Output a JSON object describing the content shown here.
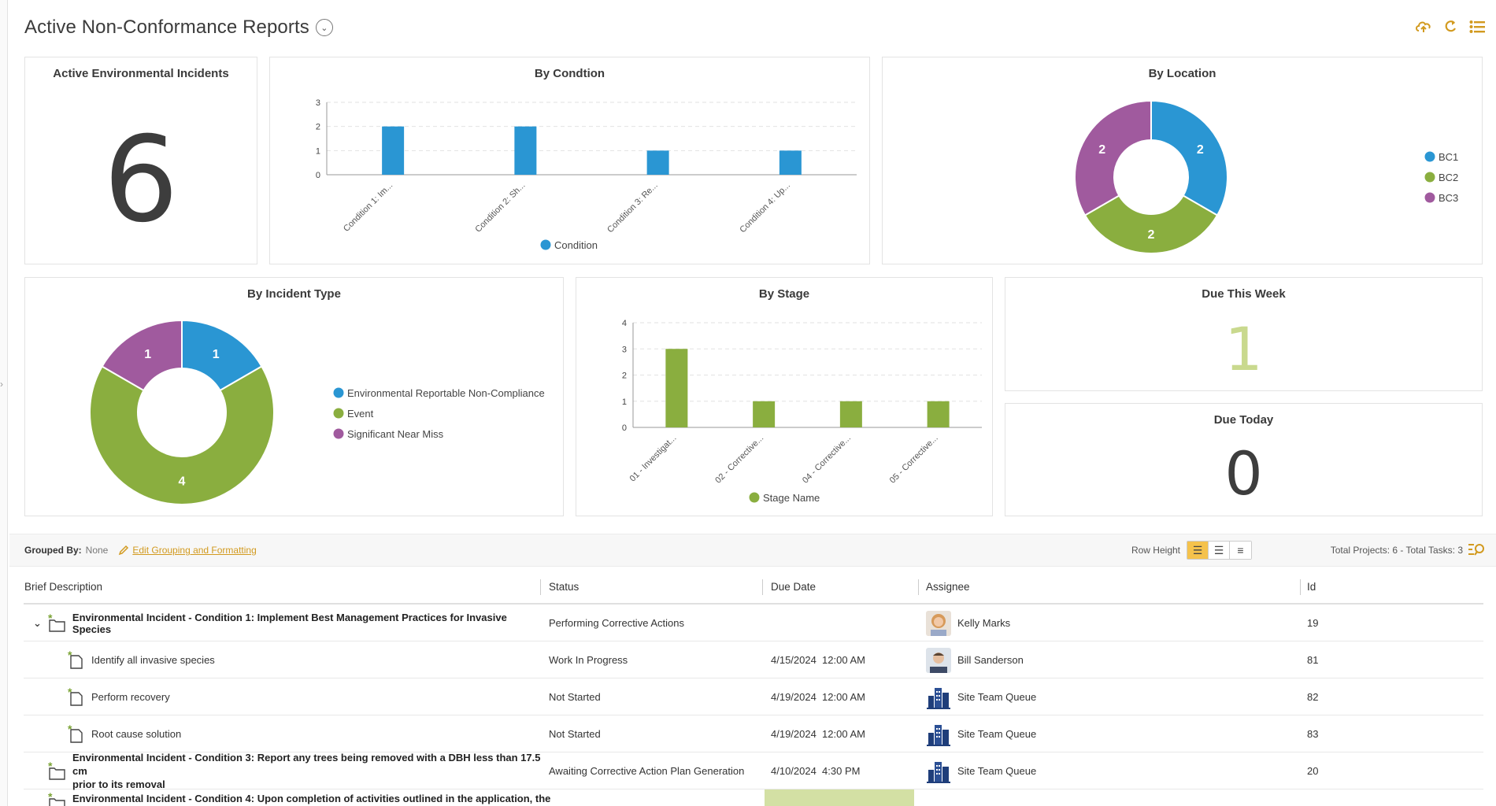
{
  "page": {
    "title": "Active Non-Conformance Reports"
  },
  "cards": {
    "active_incidents": {
      "title": "Active Environmental Incidents",
      "value": "6"
    },
    "by_condition": {
      "title": "By Condtion"
    },
    "by_location": {
      "title": "By Location"
    },
    "by_incident_type": {
      "title": "By Incident Type"
    },
    "by_stage": {
      "title": "By Stage"
    },
    "due_this_week": {
      "title": "Due This Week",
      "value": "1"
    },
    "due_today": {
      "title": "Due Today",
      "value": "0"
    }
  },
  "chart_data": [
    {
      "type": "bar",
      "title": "By Condtion",
      "categories": [
        "Condition 1: Im...",
        "Condition 2: Sh...",
        "Condition 3: Re...",
        "Condition 4: Up..."
      ],
      "series": [
        {
          "name": "Condition",
          "values": [
            2,
            2,
            1,
            1
          ],
          "color": "#2a96d3"
        }
      ],
      "ylim": [
        0,
        3
      ],
      "yticks": [
        0,
        1,
        2,
        3
      ],
      "grid": true,
      "legend": "bottom"
    },
    {
      "type": "pie",
      "title": "By Location",
      "donut": true,
      "labels": [
        "BC1",
        "BC2",
        "BC3"
      ],
      "values": [
        2,
        2,
        2
      ],
      "colors": [
        "#2a96d3",
        "#8aae3f",
        "#a05a9e"
      ],
      "legend": "right"
    },
    {
      "type": "pie",
      "title": "By Incident Type",
      "donut": true,
      "labels": [
        "Environmental Reportable Non-Compliance",
        "Event",
        "Significant Near Miss"
      ],
      "values": [
        1,
        4,
        1
      ],
      "colors": [
        "#2a96d3",
        "#8aae3f",
        "#a05a9e"
      ],
      "legend": "right"
    },
    {
      "type": "bar",
      "title": "By Stage",
      "categories": [
        "01 - Investigat...",
        "02 - Corrective...",
        "04 - Corrective...",
        "05 - Corrective..."
      ],
      "series": [
        {
          "name": "Stage Name",
          "values": [
            3,
            1,
            1,
            1
          ],
          "color": "#8aae3f"
        }
      ],
      "ylim": [
        0,
        4
      ],
      "yticks": [
        0,
        1,
        2,
        3,
        4
      ],
      "grid": true,
      "legend": "bottom"
    }
  ],
  "groupbar": {
    "label": "Grouped By:",
    "value": "None",
    "edit_label": "Edit Grouping and Formatting",
    "row_height_label": "Row Height",
    "totals": "Total Projects: 6 - Total Tasks: 3"
  },
  "grid": {
    "columns": [
      "Brief Description",
      "Status",
      "Due Date",
      "Assignee",
      "Id"
    ],
    "rows": [
      {
        "desc": "Environmental Incident - Condition 1: Implement Best Management Practices for Invasive Species",
        "status": "Performing Corrective Actions",
        "due": "",
        "assignee": "Kelly Marks",
        "avatar": "person-female",
        "id": "19"
      },
      {
        "desc": "Identify all invasive species",
        "status": "Work In Progress",
        "due": "4/15/2024  12:00 AM",
        "assignee": "Bill Sanderson",
        "avatar": "person-male",
        "id": "81"
      },
      {
        "desc": "Perform recovery",
        "status": "Not Started",
        "due": "4/19/2024  12:00 AM",
        "assignee": "Site Team Queue",
        "avatar": "building",
        "id": "82"
      },
      {
        "desc": "Root cause solution",
        "status": "Not Started",
        "due": "4/19/2024  12:00 AM",
        "assignee": "Site Team Queue",
        "avatar": "building",
        "id": "83"
      },
      {
        "desc1": "Environmental Incident - Condition 3: Report any trees being removed with a DBH less than 17.5 cm",
        "desc2": "prior to its removal",
        "status": "Awaiting Corrective Action Plan Generation",
        "due": "4/10/2024  4:30 PM",
        "assignee": "Site Team Queue",
        "avatar": "building",
        "id": "20"
      },
      {
        "desc": "Environmental Incident - Condition 4: Upon completion of activities outlined in the application, the"
      }
    ]
  },
  "colors": {
    "accent": "#d29a1f",
    "blue": "#2a96d3",
    "green": "#8aae3f",
    "purple": "#a05a9e",
    "due_week": "#c9d98e"
  }
}
